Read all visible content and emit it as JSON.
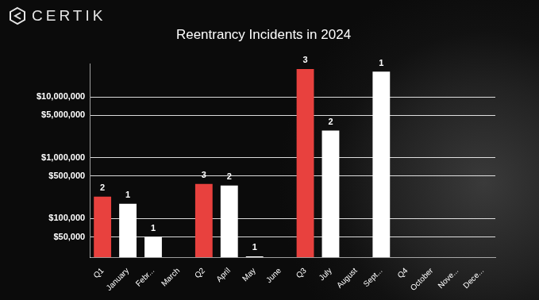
{
  "logo": {
    "text": "CERTIK"
  },
  "chart_data": {
    "type": "bar",
    "title": "Reentrancy Incidents in 2024",
    "categories": [
      "Q1",
      "January",
      "Febr...",
      "March",
      "Q2",
      "April",
      "May",
      "June",
      "Q3",
      "July",
      "August",
      "Sept...",
      "Q4",
      "October",
      "Nove...",
      "Dece..."
    ],
    "values": [
      230000,
      175000,
      50000,
      null,
      370000,
      350000,
      24000,
      null,
      28800000,
      2800000,
      null,
      26000000,
      null,
      null,
      null,
      null
    ],
    "counts": [
      2,
      1,
      1,
      null,
      3,
      2,
      1,
      null,
      3,
      2,
      null,
      1,
      null,
      null,
      null,
      null
    ],
    "colors": [
      "#e8413e",
      "#ffffff",
      "#ffffff",
      "#ffffff",
      "#e8413e",
      "#ffffff",
      "#ffffff",
      "#ffffff",
      "#e8413e",
      "#ffffff",
      "#ffffff",
      "#ffffff",
      "#e8413e",
      "#ffffff",
      "#ffffff",
      "#ffffff"
    ],
    "log": "y",
    "ylim": [
      23000,
      35000000
    ],
    "yticks": [
      {
        "value": 50000,
        "label": "$50,000"
      },
      {
        "value": 100000,
        "label": "$100,000"
      },
      {
        "value": 500000,
        "label": "$500,000"
      },
      {
        "value": 1000000,
        "label": "$1,000,000"
      },
      {
        "value": 5000000,
        "label": "$5,000,000"
      },
      {
        "value": 10000000,
        "label": "$10,000,000"
      }
    ],
    "grid": true
  }
}
